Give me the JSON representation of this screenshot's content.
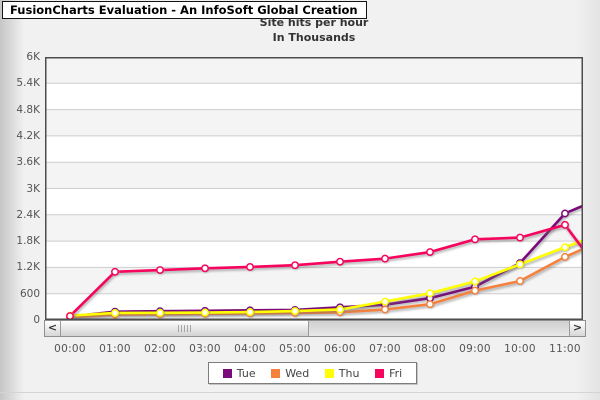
{
  "title_bar": {
    "text": "FusionCharts Evaluation - An InfoSoft Global Creation"
  },
  "captions": {
    "title": "Site hits per hour",
    "subtitle": "In Thousands"
  },
  "scrollbar": {
    "left_arrow": "<",
    "right_arrow": ">"
  },
  "chart_data": {
    "type": "line",
    "title": "Site hits per hour",
    "subtitle": "In Thousands",
    "categories": [
      "00:00",
      "01:00",
      "02:00",
      "03:00",
      "04:00",
      "05:00",
      "06:00",
      "07:00",
      "08:00",
      "09:00",
      "10:00",
      "11:00"
    ],
    "series": [
      {
        "name": "Tue",
        "color": "#7a0a7a",
        "values": [
          80,
          190,
          200,
          210,
          220,
          230,
          290,
          350,
          500,
          760,
          1300,
          2430
        ],
        "next_value_offscreen": 2870
      },
      {
        "name": "Wed",
        "color": "#f5813d",
        "values": [
          70,
          125,
          130,
          140,
          150,
          160,
          175,
          240,
          360,
          670,
          890,
          1440
        ],
        "next_value_offscreen": 1890
      },
      {
        "name": "Thu",
        "color": "#ffff00",
        "values": [
          100,
          160,
          165,
          170,
          180,
          205,
          240,
          420,
          610,
          880,
          1270,
          1660
        ],
        "next_value_offscreen": 2050
      },
      {
        "name": "Fri",
        "color": "#f6045e",
        "values": [
          90,
          1100,
          1140,
          1180,
          1210,
          1250,
          1330,
          1400,
          1550,
          1840,
          1880,
          2170
        ],
        "next_value_offscreen": 800
      }
    ],
    "ylim": [
      0,
      6000
    ],
    "ytick_step": 600,
    "ytick_labels": [
      "0",
      "600",
      "1.2K",
      "1.8K",
      "2.4K",
      "3K",
      "3.6K",
      "4.2K",
      "4.8K",
      "5.4K",
      "6K"
    ],
    "xlabel": "",
    "ylabel": "",
    "grid": true,
    "legend_position": "bottom",
    "legend_entries": [
      "Tue",
      "Wed",
      "Thu",
      "Fri"
    ]
  }
}
